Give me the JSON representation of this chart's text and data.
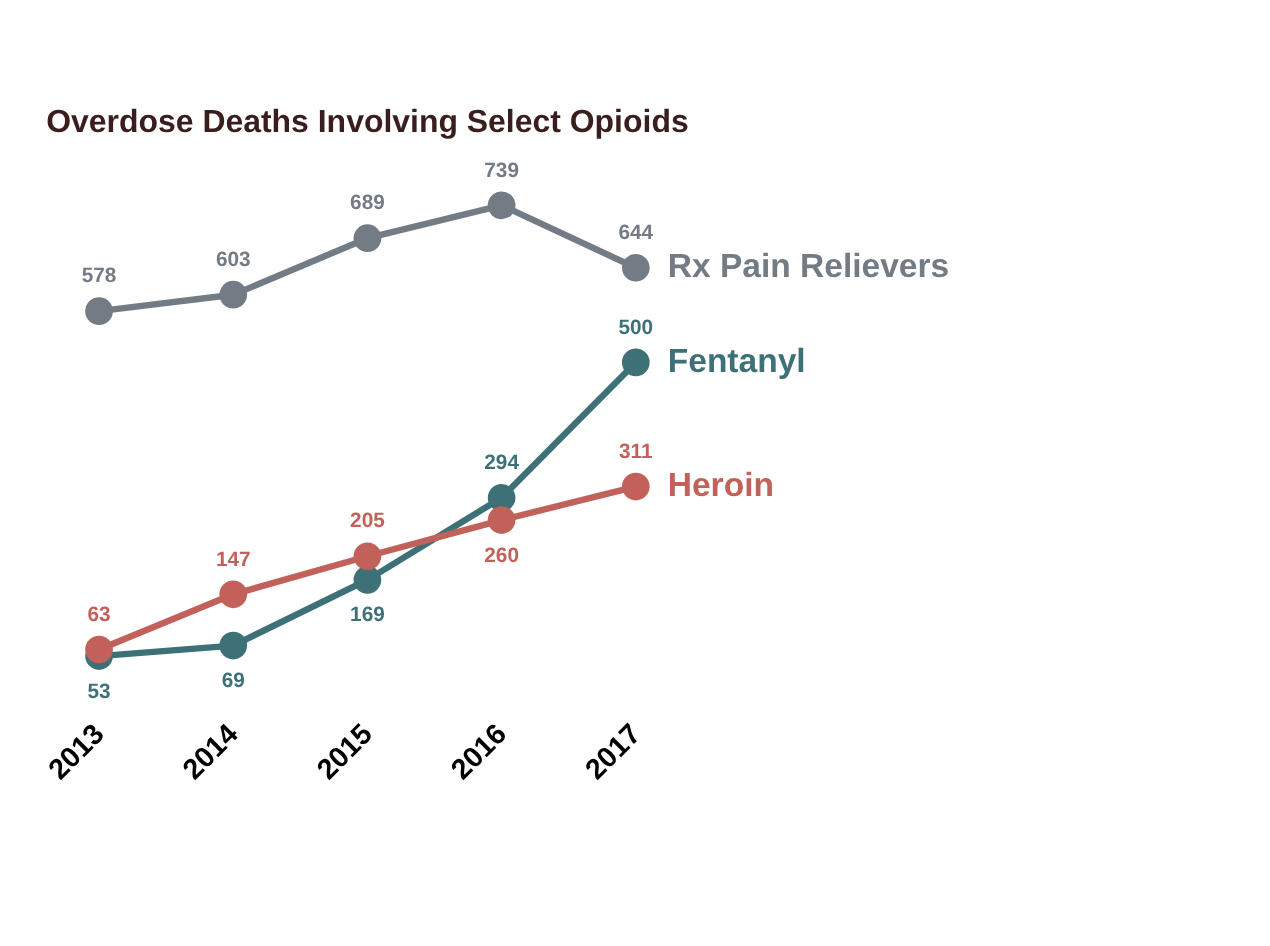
{
  "chart_data": {
    "type": "line",
    "title": "Overdose Deaths Involving Select Opioids",
    "categories": [
      "2013",
      "2014",
      "2015",
      "2016",
      "2017"
    ],
    "series": [
      {
        "name": "Rx Pain Relievers",
        "color": "#737b85",
        "values": [
          578,
          603,
          689,
          739,
          644
        ]
      },
      {
        "name": "Fentanyl",
        "color": "#3d7177",
        "values": [
          53,
          69,
          169,
          294,
          500
        ]
      },
      {
        "name": "Heroin",
        "color": "#c2615a",
        "values": [
          63,
          147,
          205,
          260,
          311
        ]
      }
    ],
    "marker": "circle",
    "data_labels": true,
    "tick_labels": "x"
  }
}
